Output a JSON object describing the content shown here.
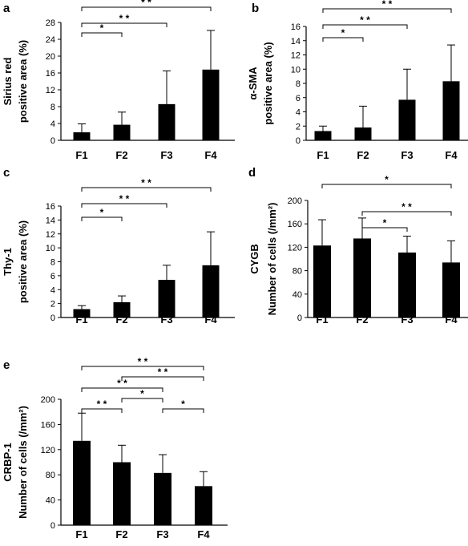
{
  "charts": [
    {
      "id": "a",
      "panel_letter": "a",
      "ylabel_lines": [
        "Sirius red",
        "positive area (%)"
      ],
      "chart_data": {
        "type": "bar",
        "categories": [
          "F1",
          "F2",
          "F3",
          "F4"
        ],
        "values": [
          1.9,
          3.7,
          8.6,
          16.8
        ],
        "error_plus": [
          2.0,
          3.0,
          7.9,
          9.3
        ],
        "ylim": [
          0,
          28
        ],
        "yticks": [
          0,
          4,
          8,
          12,
          16,
          20,
          24,
          28
        ],
        "significance": [
          {
            "from": "F1",
            "to": "F2",
            "label": "*"
          },
          {
            "from": "F1",
            "to": "F3",
            "label": "* *"
          },
          {
            "from": "F1",
            "to": "F4",
            "label": "* *"
          }
        ]
      }
    },
    {
      "id": "b",
      "panel_letter": "b",
      "ylabel_lines": [
        "α-SMA",
        "positive area (%)"
      ],
      "chart_data": {
        "type": "bar",
        "categories": [
          "F1",
          "F2",
          "F3",
          "F4"
        ],
        "values": [
          1.3,
          1.8,
          5.7,
          8.3
        ],
        "error_plus": [
          0.7,
          3.0,
          4.3,
          5.1
        ],
        "ylim": [
          0,
          16
        ],
        "yticks": [
          0,
          2,
          4,
          6,
          8,
          10,
          12,
          14,
          16
        ],
        "significance": [
          {
            "from": "F1",
            "to": "F2",
            "label": "*"
          },
          {
            "from": "F1",
            "to": "F3",
            "label": "* *"
          },
          {
            "from": "F1",
            "to": "F4",
            "label": "* *"
          }
        ]
      }
    },
    {
      "id": "c",
      "panel_letter": "c",
      "ylabel_lines": [
        "Thy-1",
        "positive area (%)"
      ],
      "chart_data": {
        "type": "bar",
        "categories": [
          "F1",
          "F2",
          "F3",
          "F4"
        ],
        "values": [
          1.2,
          2.2,
          5.4,
          7.5
        ],
        "error_plus": [
          0.5,
          0.9,
          2.1,
          4.8
        ],
        "ylim": [
          0,
          16
        ],
        "yticks": [
          0,
          2,
          4,
          6,
          8,
          10,
          12,
          14,
          16
        ],
        "significance": [
          {
            "from": "F1",
            "to": "F2",
            "label": "*"
          },
          {
            "from": "F1",
            "to": "F3",
            "label": "* *"
          },
          {
            "from": "F1",
            "to": "F4",
            "label": "* *"
          }
        ]
      }
    },
    {
      "id": "d",
      "panel_letter": "d",
      "ylabel_lines": [
        "CYGB",
        "Number of  cells (/mm²)"
      ],
      "chart_data": {
        "type": "bar",
        "categories": [
          "F1",
          "F2",
          "F3",
          "F4"
        ],
        "values": [
          123,
          135,
          111,
          94
        ],
        "error_plus": [
          44,
          35,
          28,
          37
        ],
        "ylim": [
          0,
          200
        ],
        "yticks": [
          0,
          40,
          80,
          120,
          160,
          200
        ],
        "significance": [
          {
            "from": "F2",
            "to": "F3",
            "label": "*"
          },
          {
            "from": "F2",
            "to": "F4",
            "label": "* *"
          },
          {
            "from": "F1",
            "to": "F4",
            "label": "*"
          }
        ]
      }
    },
    {
      "id": "e",
      "panel_letter": "e",
      "ylabel_lines": [
        "CRBP-1",
        "Number of  cells (/mm²)"
      ],
      "chart_data": {
        "type": "bar",
        "categories": [
          "F1",
          "F2",
          "F3",
          "F4"
        ],
        "values": [
          134,
          100,
          83,
          62
        ],
        "error_plus": [
          44,
          27,
          29,
          23
        ],
        "ylim": [
          0,
          200
        ],
        "yticks": [
          0,
          40,
          80,
          120,
          160,
          200
        ],
        "significance": [
          {
            "from": "F1",
            "to": "F2",
            "label": "* *"
          },
          {
            "from": "F2",
            "to": "F3",
            "label": "*"
          },
          {
            "from": "F3",
            "to": "F4",
            "label": "*"
          },
          {
            "from": "F1",
            "to": "F3",
            "label": "* *"
          },
          {
            "from": "F2",
            "to": "F4",
            "label": "* *"
          },
          {
            "from": "F1",
            "to": "F4",
            "label": "* *"
          }
        ]
      }
    }
  ]
}
